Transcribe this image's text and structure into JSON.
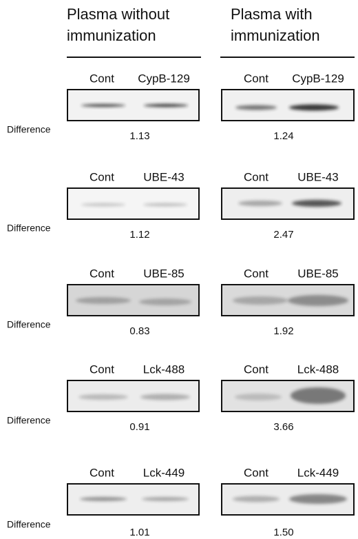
{
  "headers": [
    {
      "lines": [
        "Plasma without",
        "immunization"
      ]
    },
    {
      "lines": [
        "Plasma with",
        "immunization"
      ]
    }
  ],
  "row_label": "Difference",
  "rows": [
    {
      "left": {
        "lanes": [
          "Cont",
          "CypB-129"
        ],
        "value": "1.13"
      },
      "right": {
        "lanes": [
          "Cont",
          "CypB-129"
        ],
        "value": "1.24"
      }
    },
    {
      "left": {
        "lanes": [
          "Cont",
          "UBE-43"
        ],
        "value": "1.12"
      },
      "right": {
        "lanes": [
          "Cont",
          "UBE-43"
        ],
        "value": "2.47"
      }
    },
    {
      "left": {
        "lanes": [
          "Cont",
          "UBE-85"
        ],
        "value": "0.83"
      },
      "right": {
        "lanes": [
          "Cont",
          "UBE-85"
        ],
        "value": "1.92"
      }
    },
    {
      "left": {
        "lanes": [
          "Cont",
          "Lck-488"
        ],
        "value": "0.91"
      },
      "right": {
        "lanes": [
          "Cont",
          "Lck-488"
        ],
        "value": "3.66"
      }
    },
    {
      "left": {
        "lanes": [
          "Cont",
          "Lck-449"
        ],
        "value": "1.01"
      },
      "right": {
        "lanes": [
          "Cont",
          "Lck-449"
        ],
        "value": "1.50"
      }
    }
  ]
}
